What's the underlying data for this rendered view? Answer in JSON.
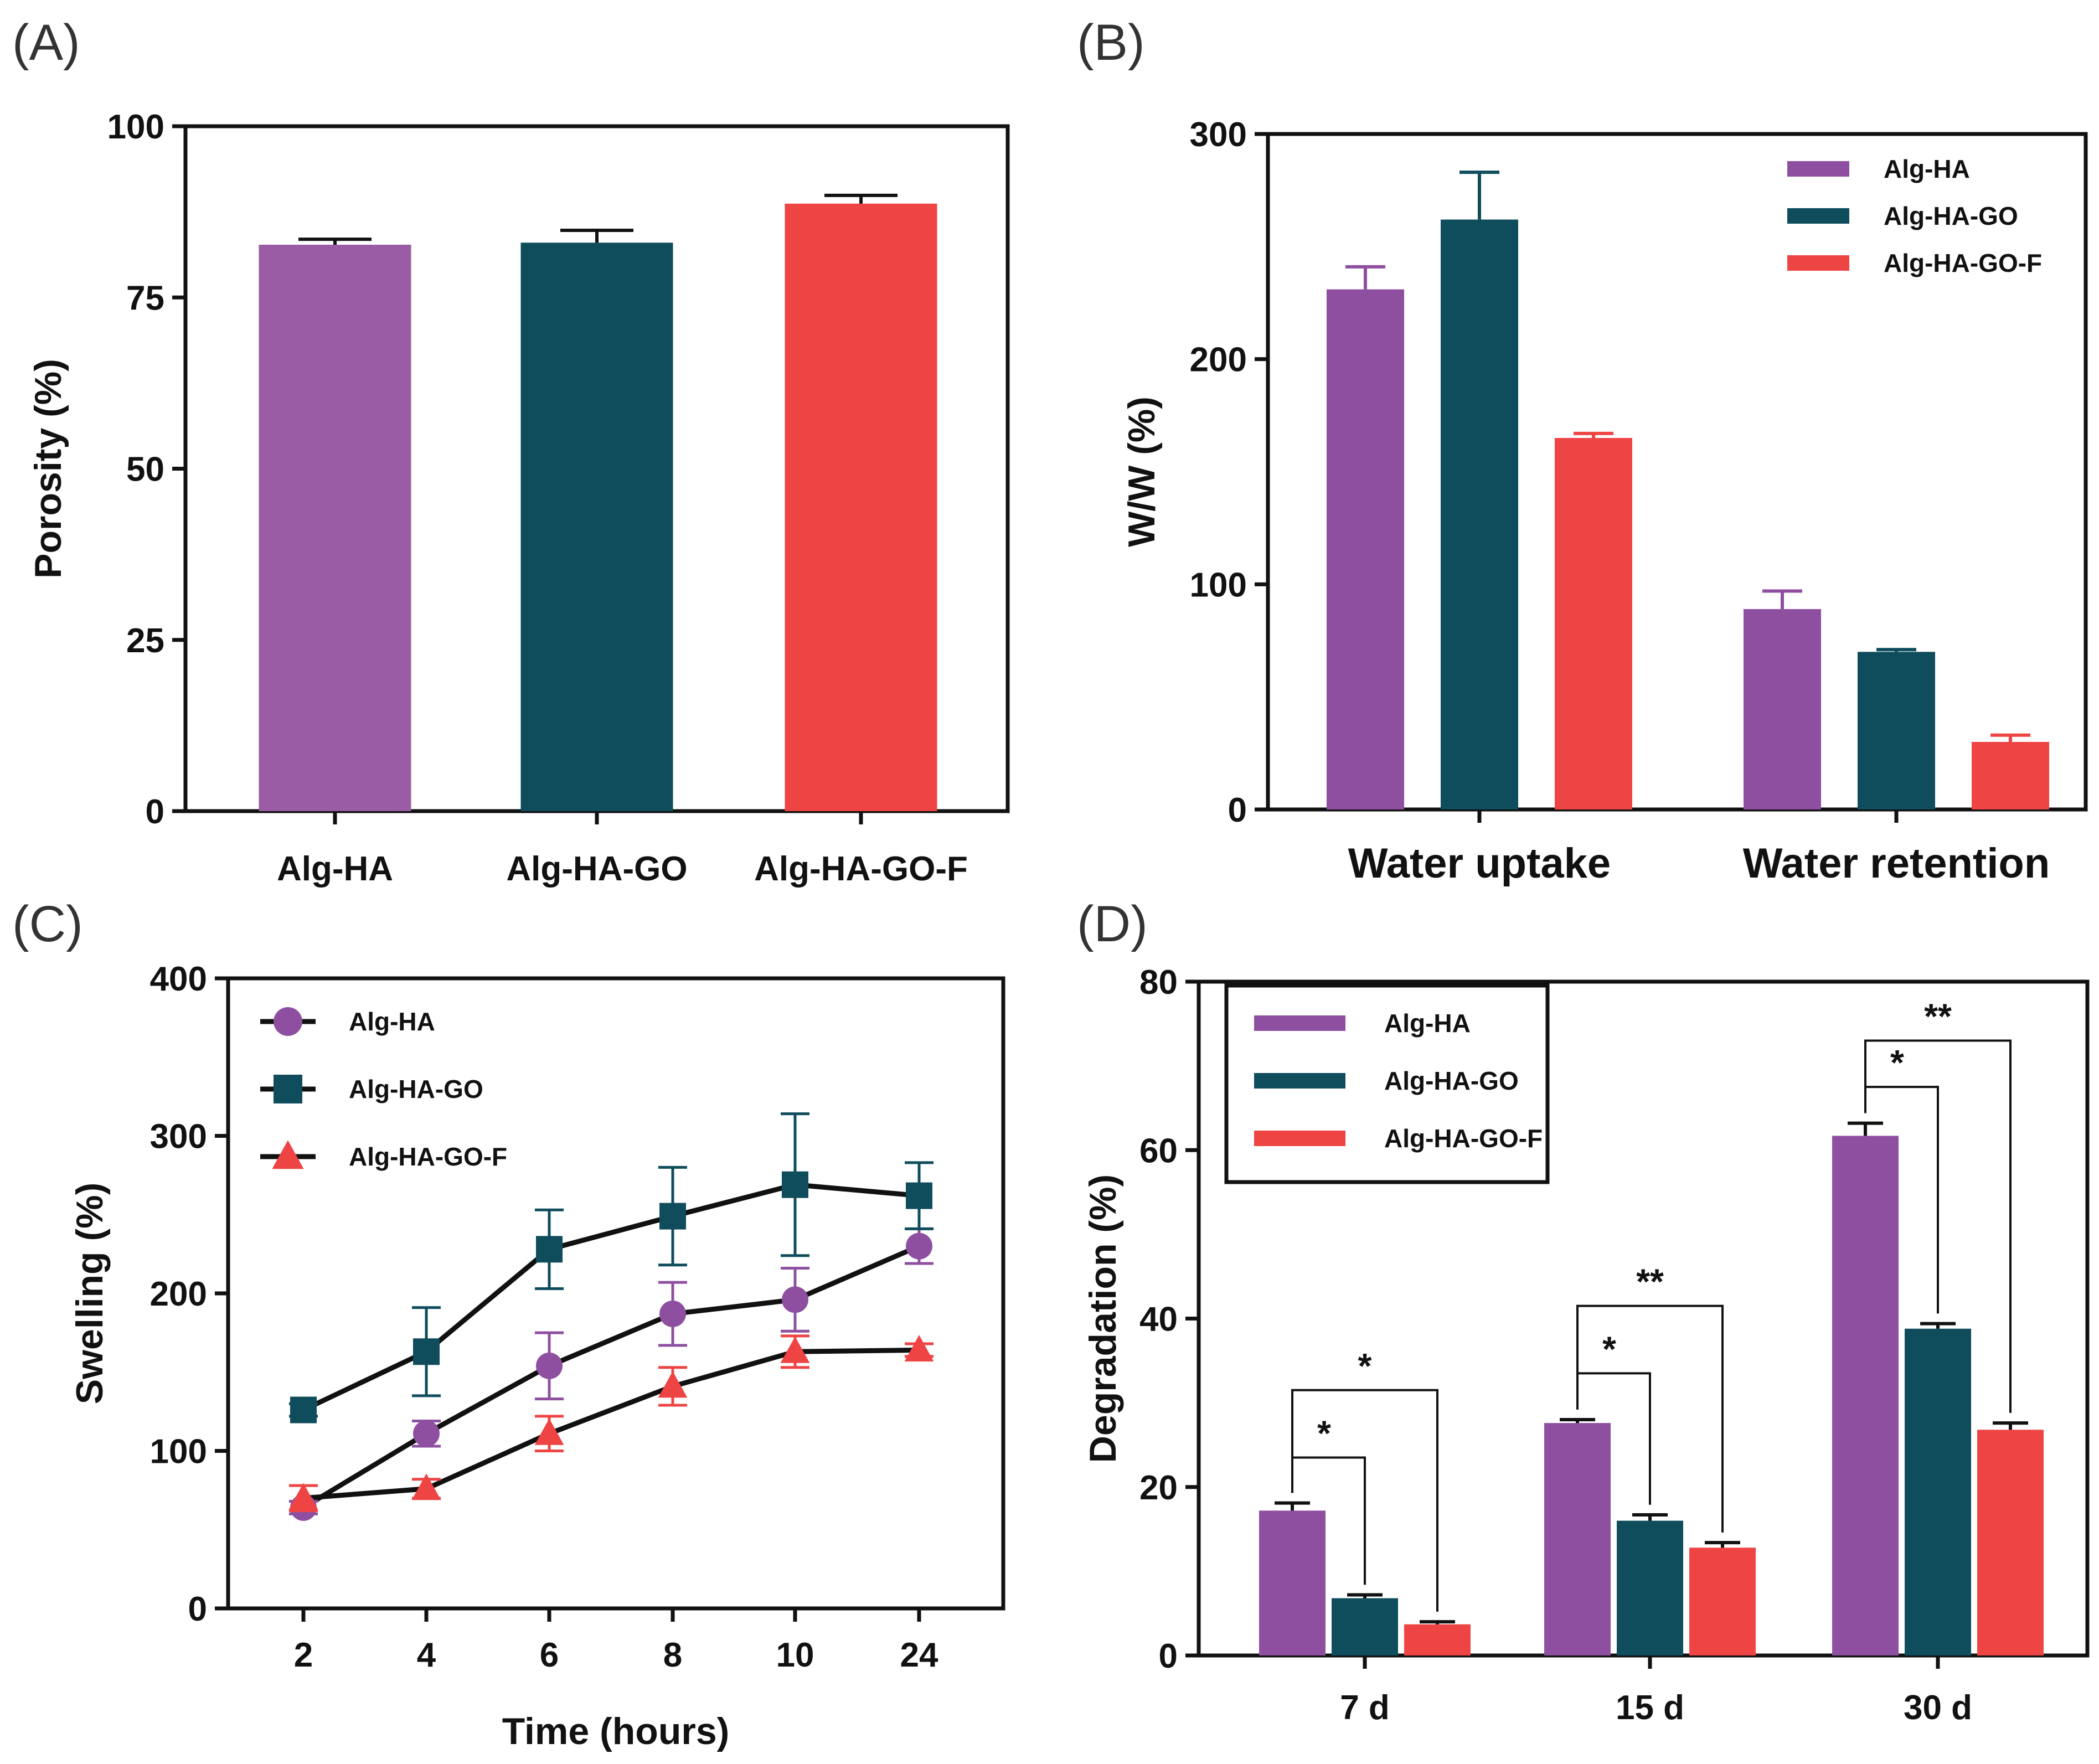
{
  "colors": {
    "alg_ha": "#8e4fa0",
    "alg_ha_go": "#0f4c5c",
    "alg_ha_go_f": "#ef4444",
    "axis": "#111111"
  },
  "chart_data": [
    {
      "id": "A",
      "label": "(A)",
      "type": "bar",
      "categories": [
        "Alg-HA",
        "Alg-HA-GO",
        "Alg-HA-GO-F"
      ],
      "values": [
        82.7,
        83.0,
        88.7
      ],
      "errors": [
        0.8,
        1.8,
        1.2
      ],
      "bar_colors": [
        "#9b5ca6",
        "#0f4c5c",
        "#ef4444"
      ],
      "ylabel": "Porosity (%)",
      "xlabel": "",
      "ylim": [
        0,
        100
      ],
      "yticks": [
        0,
        25,
        50,
        75,
        100
      ]
    },
    {
      "id": "B",
      "label": "(B)",
      "type": "bar",
      "categories": [
        "Water uptake",
        "Water retention"
      ],
      "series": [
        {
          "name": "Alg-HA",
          "values": [
            231,
            89
          ],
          "errors": [
            10,
            8
          ]
        },
        {
          "name": "Alg-HA-GO",
          "values": [
            262,
            70
          ],
          "errors": [
            21,
            1
          ]
        },
        {
          "name": "Alg-HA-GO-F",
          "values": [
            165,
            30
          ],
          "errors": [
            2,
            3
          ]
        }
      ],
      "ylabel": "W/W (%)",
      "xlabel": "",
      "ylim": [
        0,
        300
      ],
      "yticks": [
        0,
        100,
        200,
        300
      ],
      "legend": "top-right"
    },
    {
      "id": "C",
      "label": "(C)",
      "type": "line",
      "x": [
        "2",
        "4",
        "6",
        "8",
        "10",
        "24"
      ],
      "series": [
        {
          "name": "Alg-HA",
          "marker": "circle",
          "values": [
            64,
            111,
            154,
            187,
            196,
            230
          ],
          "errors": [
            4,
            8,
            21,
            20,
            20,
            11
          ]
        },
        {
          "name": "Alg-HA-GO",
          "marker": "square",
          "values": [
            126,
            163,
            228,
            249,
            269,
            262
          ],
          "errors": [
            4,
            28,
            25,
            31,
            45,
            21
          ]
        },
        {
          "name": "Alg-HA-GO-F",
          "marker": "triangle",
          "values": [
            70,
            76,
            111,
            141,
            163,
            164
          ],
          "errors": [
            8,
            6,
            11,
            12,
            10,
            4
          ]
        }
      ],
      "ylabel": "Swelling (%)",
      "xlabel": "Time (hours)",
      "ylim": [
        0,
        400
      ],
      "yticks": [
        0,
        100,
        200,
        300,
        400
      ],
      "legend": "top-left"
    },
    {
      "id": "D",
      "label": "(D)",
      "type": "bar",
      "categories": [
        "7 d",
        "15 d",
        "30 d"
      ],
      "series": [
        {
          "name": "Alg-HA",
          "values": [
            17.2,
            27.6,
            61.7
          ],
          "errors": [
            0.9,
            0.4,
            1.5
          ]
        },
        {
          "name": "Alg-HA-GO",
          "values": [
            6.8,
            16.0,
            38.8
          ],
          "errors": [
            0.4,
            0.7,
            0.6
          ]
        },
        {
          "name": "Alg-HA-GO-F",
          "values": [
            3.7,
            12.8,
            26.8
          ],
          "errors": [
            0.3,
            0.6,
            0.8
          ]
        }
      ],
      "ylabel": "Degradation (%)",
      "xlabel": "",
      "ylim": [
        0,
        80
      ],
      "yticks": [
        0,
        20,
        40,
        60,
        80
      ],
      "legend": "top-left",
      "significance": [
        {
          "group": 0,
          "from": 0,
          "to": 1,
          "top": 23.5,
          "label": "*"
        },
        {
          "group": 0,
          "from": 0,
          "to": 2,
          "top": 31.5,
          "label": "*"
        },
        {
          "group": 1,
          "from": 0,
          "to": 1,
          "top": 33.5,
          "label": "*"
        },
        {
          "group": 1,
          "from": 0,
          "to": 2,
          "top": 41.5,
          "label": "**"
        },
        {
          "group": 2,
          "from": 0,
          "to": 1,
          "top": 67.5,
          "label": "*"
        },
        {
          "group": 2,
          "from": 0,
          "to": 2,
          "top": 73.0,
          "label": "**"
        }
      ]
    }
  ]
}
